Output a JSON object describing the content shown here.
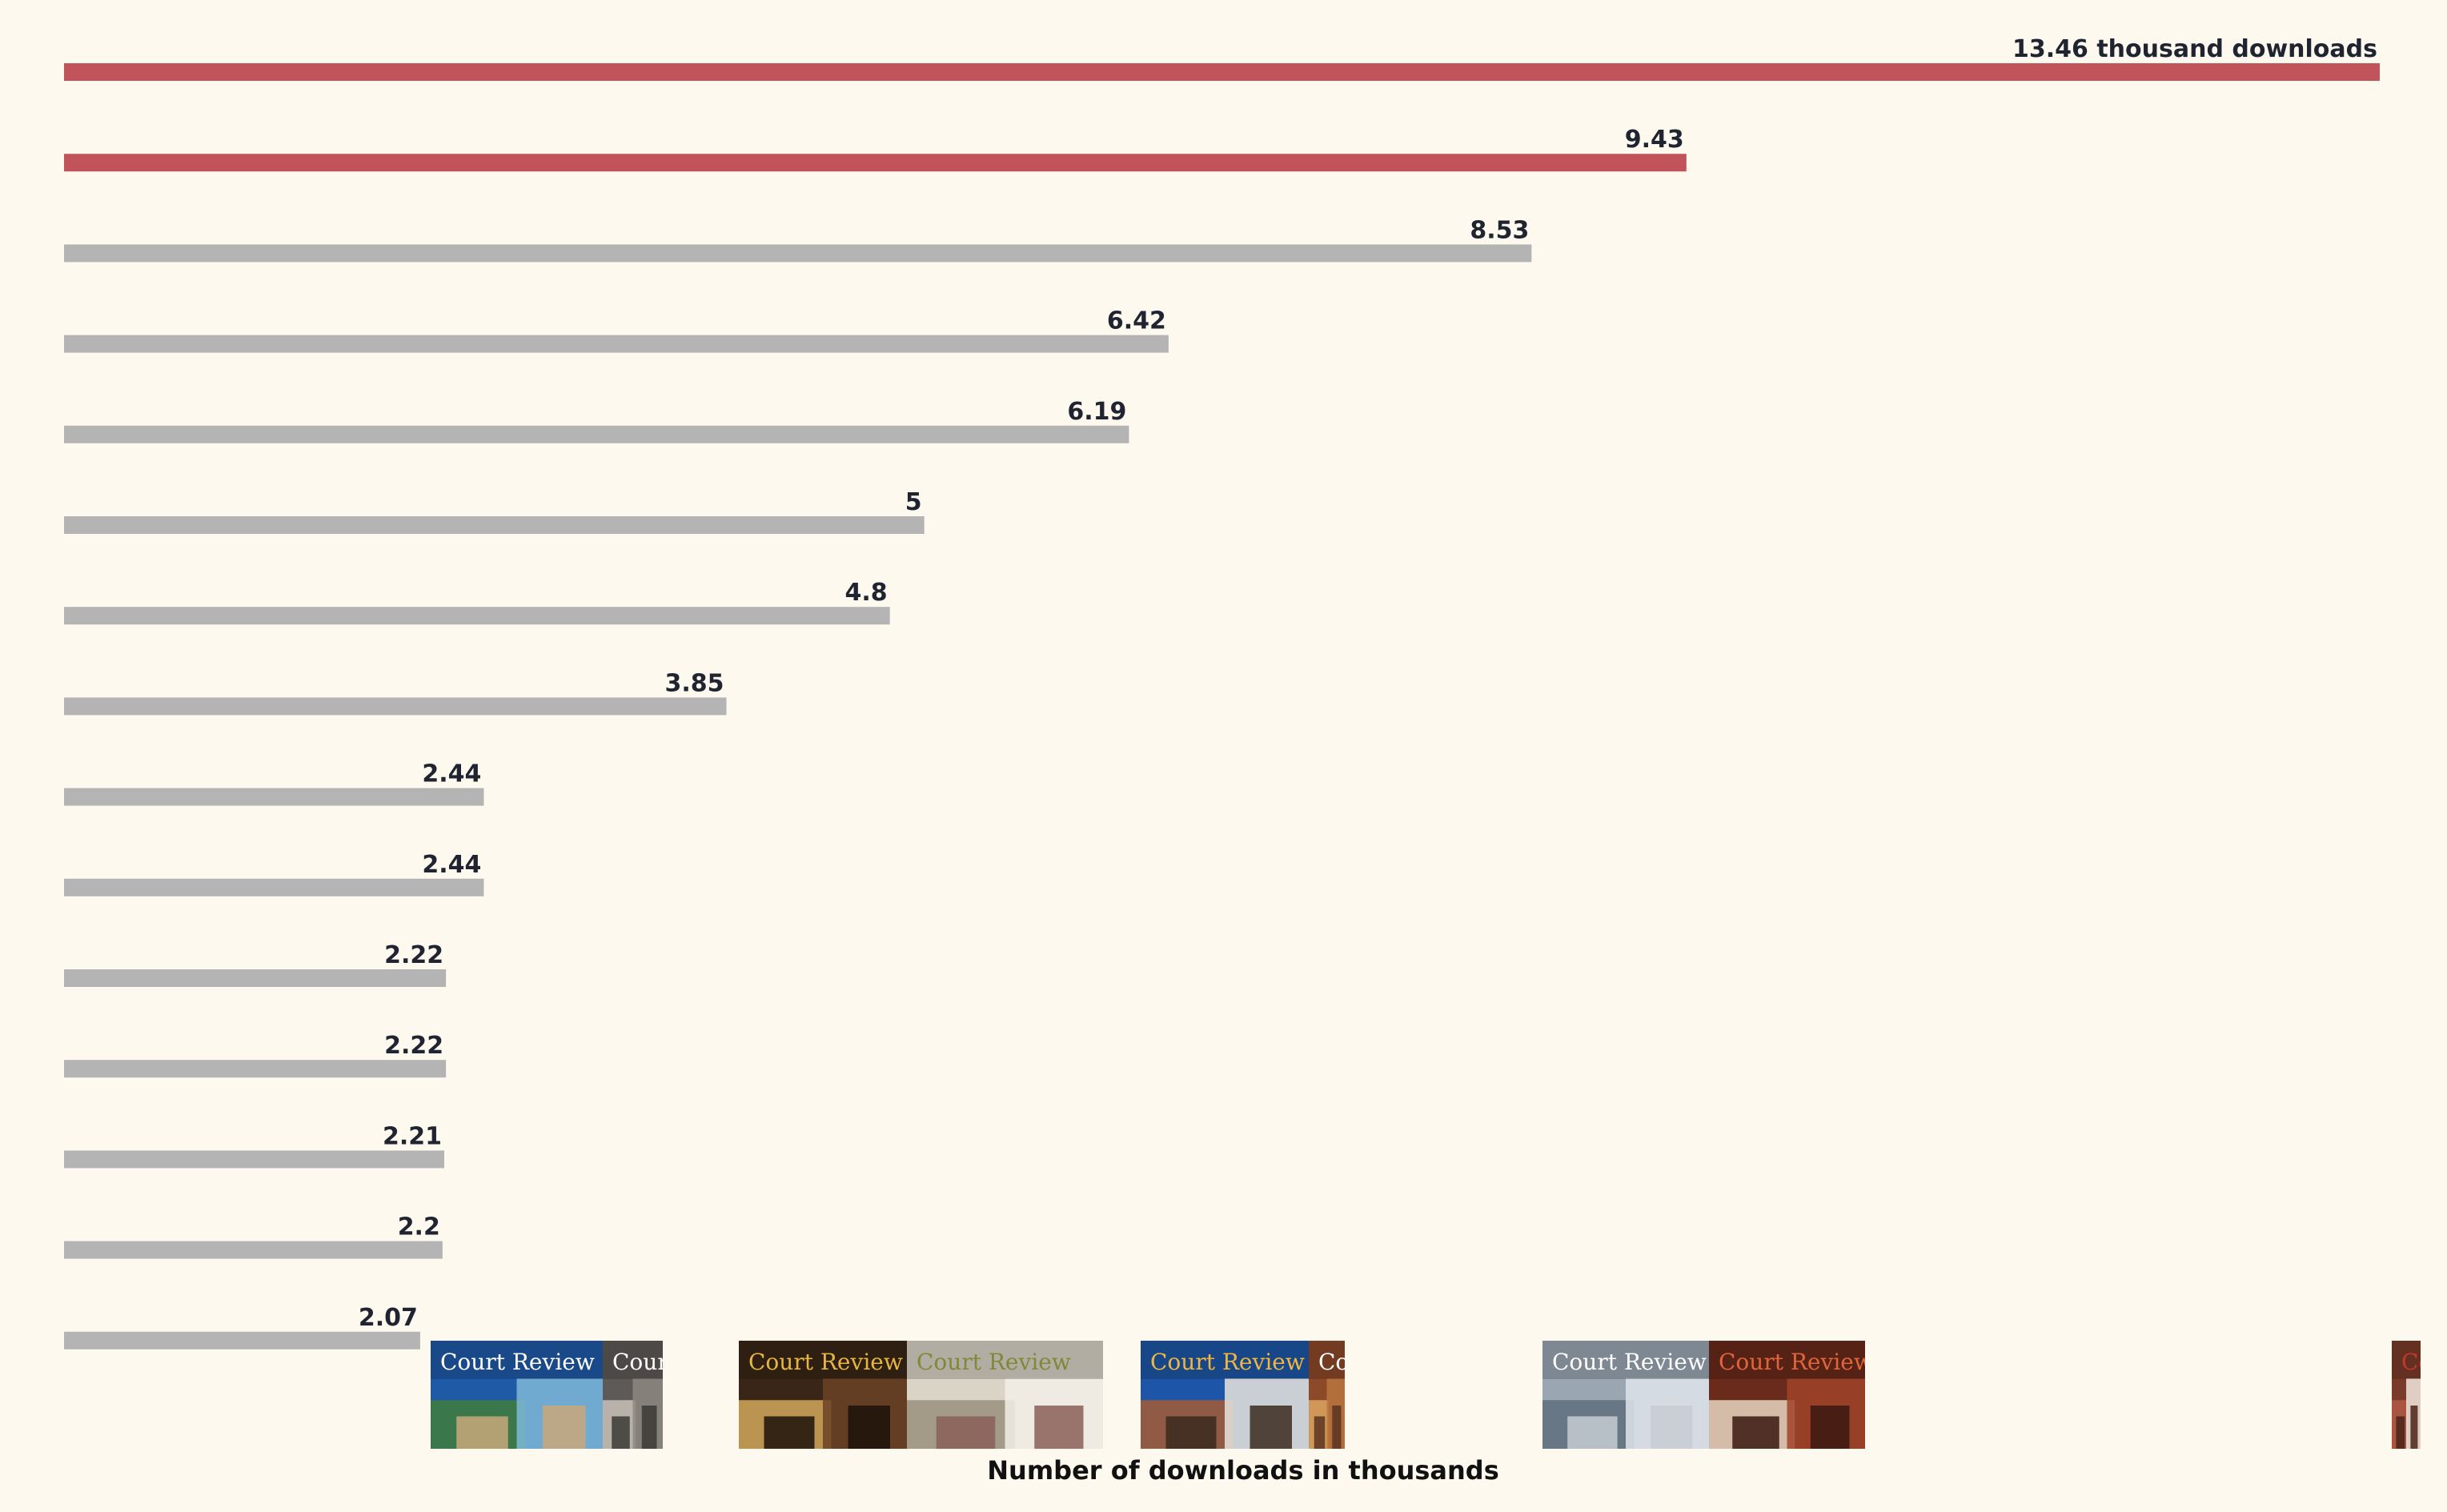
{
  "chart_data": {
    "type": "bar",
    "orientation": "horizontal",
    "values": [
      13.46,
      9.43,
      8.53,
      6.42,
      6.19,
      5,
      4.8,
      3.85,
      2.44,
      2.44,
      2.22,
      2.22,
      2.21,
      2.2,
      2.07
    ],
    "value_labels": [
      "13.46 thousand downloads",
      "9.43",
      "8.53",
      "6.42",
      "6.19",
      "5",
      "4.8",
      "3.85",
      "2.44",
      "2.44",
      "2.22",
      "2.22",
      "2.21",
      "2.2",
      "2.07"
    ],
    "highlighted": [
      true,
      true,
      false,
      false,
      false,
      false,
      false,
      false,
      false,
      false,
      false,
      false,
      false,
      false,
      false
    ],
    "xlabel": "Number of downloads in thousands",
    "xlim": [
      0,
      13.46
    ],
    "grid": false,
    "colors": {
      "highlight": "#c0545a",
      "default": "#b4b4b4",
      "background": "#fdf9ee",
      "label": "#1f2430"
    }
  },
  "covers": [
    {
      "title": "Court Review",
      "title_color": "#ffffff",
      "palette": [
        "#1f5aa6",
        "#7fb8d8",
        "#3f7d3a",
        "#c9a77a"
      ]
    },
    {
      "title": "Court Review",
      "title_color": "#ffffff",
      "palette": [
        "#5d5a57",
        "#8c8780",
        "#c8c2b8",
        "#3b3936"
      ]
    },
    {
      "title": "Court Review",
      "title_color": "#e5b640",
      "palette": [
        "#3a2618",
        "#6b4326",
        "#d4a85c",
        "#1c120b"
      ]
    },
    {
      "title": "Court Review",
      "title_color": "#7e8a3a",
      "palette": [
        "#d9d4c6",
        "#f2efe6",
        "#9a8f7d",
        "#8a5f58"
      ]
    },
    {
      "title": "Court Review",
      "title_color": "#f0b640",
      "palette": [
        "#1d56a8",
        "#e7e4dd",
        "#a55a32",
        "#3a2a1e"
      ]
    },
    {
      "title": "Court Review",
      "title_color": "#ffffff",
      "palette": [
        "#8d4a2a",
        "#b9753f",
        "#dca660",
        "#5a3220"
      ]
    },
    {
      "title": "Court Review",
      "title_color": "#ffffff",
      "palette": [
        "#9aa6b2",
        "#dfe4ea",
        "#5f6e7d",
        "#c7ccd2"
      ]
    },
    {
      "title": "Court Review",
      "title_color": "#e0653a",
      "palette": [
        "#6a2a1c",
        "#a0432a",
        "#e8d6c2",
        "#3a1810"
      ]
    },
    {
      "title": "Court Review",
      "title_color": "#c0392b",
      "palette": [
        "#7a3b2a",
        "#f2e8df",
        "#b35b45",
        "#4a2419"
      ]
    }
  ]
}
